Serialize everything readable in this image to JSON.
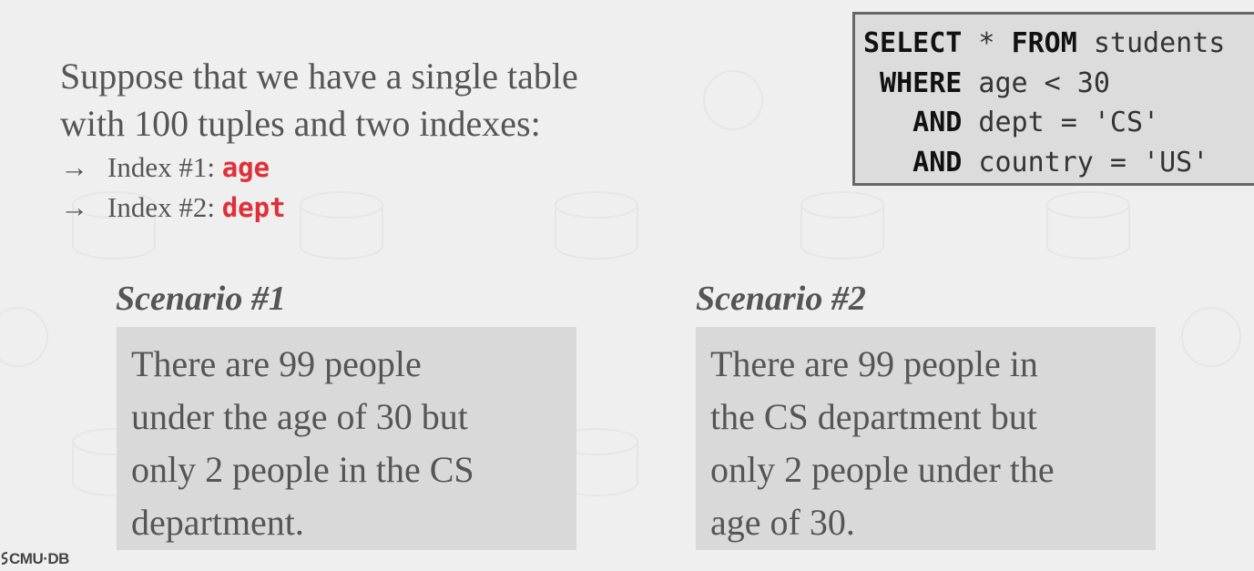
{
  "intro": {
    "line1": "Suppose that we have a single table",
    "line2": "with 100 tuples and two indexes:",
    "bullets": [
      {
        "arrow": "→",
        "label": "Index #1: ",
        "keyword": "age"
      },
      {
        "arrow": "→",
        "label": "Index #2: ",
        "keyword": "dept"
      }
    ],
    "keyword_color": "#e0303a"
  },
  "sql": {
    "lines": [
      {
        "kw": "SELECT",
        "rest": " * ",
        "kw2": "FROM",
        "rest2": " students"
      },
      {
        "kw": " WHERE",
        "rest": " age < 30"
      },
      {
        "kw": "   AND",
        "rest": " dept = 'CS'"
      },
      {
        "kw": "   AND",
        "rest": " country = 'US'"
      }
    ]
  },
  "scenarios": [
    {
      "title": "Scenario #1",
      "lines": [
        "There are 99 people",
        "under the age of 30 but",
        "only 2 people in the CS",
        "department."
      ]
    },
    {
      "title": "Scenario #2",
      "lines": [
        "There are 99 people in",
        "the CS department but",
        "only 2 people under the",
        "age of 30."
      ]
    }
  ],
  "footer": {
    "logo_text": "CMU·DB"
  }
}
